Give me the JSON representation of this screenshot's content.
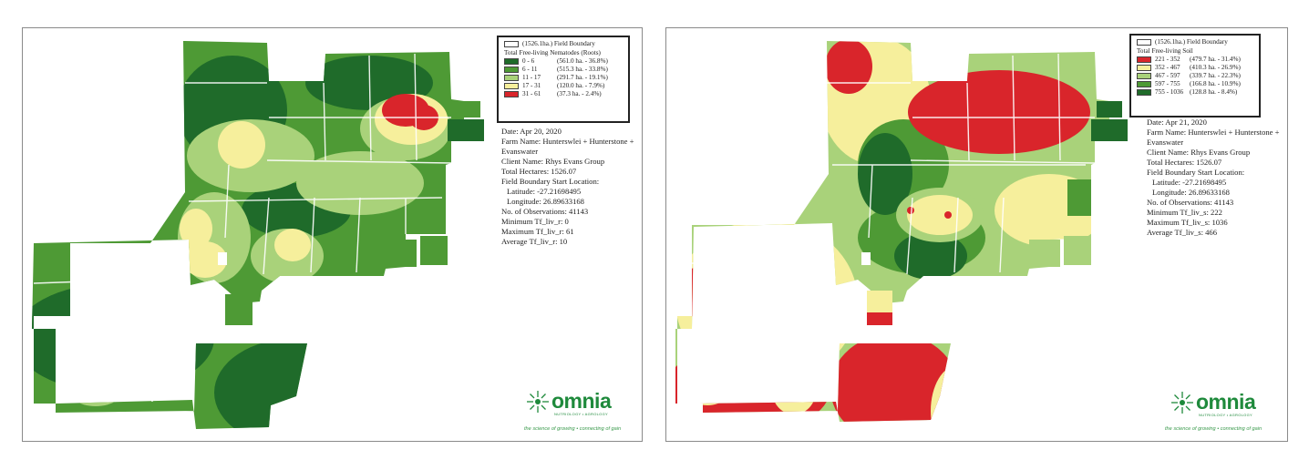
{
  "colors": {
    "class1": "#1f6b2a",
    "class2": "#4e9a35",
    "class3": "#a9d27a",
    "class4": "#f6ef9c",
    "class5": "#d9252b",
    "brand": "#1f8a3c"
  },
  "maps": [
    {
      "legend": {
        "boundary_label": "(1526.1ha.) Field Boundary",
        "title": "Total Free-living Nematodes (Roots)",
        "classes": [
          {
            "range": "0 - 6",
            "stat": "(561.0 ha. - 36.8%)",
            "class": "class1"
          },
          {
            "range": "6 - 11",
            "stat": "(515.3 ha. - 33.8%)",
            "class": "class2"
          },
          {
            "range": "11 - 17",
            "stat": "(291.7 ha. - 19.1%)",
            "class": "class3"
          },
          {
            "range": "17 - 31",
            "stat": "(120.0 ha. - 7.9%)",
            "class": "class4"
          },
          {
            "range": "31 - 61",
            "stat": "(37.3 ha. - 2.4%)",
            "class": "class5"
          }
        ]
      },
      "info": {
        "date": "Date: Apr 20, 2020",
        "farm": "Farm Name: Hunterswlei + Hunterstone + Evanswater",
        "client": "Client Name: Rhys Evans Group",
        "hectares": "Total Hectares: 1526.07",
        "start_label": "Field Boundary Start Location:",
        "latitude": "Latitude: -27.21698495",
        "longitude": "Longitude: 26.89633168",
        "observations": "No. of Observations: 41143",
        "minimum": "Minimum Tf_liv_r: 0",
        "maximum": "Maximum Tf_liv_r: 61",
        "average": "Average Tf_liv_r: 10"
      }
    },
    {
      "legend": {
        "boundary_label": "(1526.1ha.) Field Boundary",
        "title": "Total Free-living Soil",
        "classes": [
          {
            "range": "221 - 352",
            "stat": "(479.7 ha. - 31.4%)",
            "class": "class5"
          },
          {
            "range": "352 - 467",
            "stat": "(410.3 ha. - 26.9%)",
            "class": "class4"
          },
          {
            "range": "467 - 597",
            "stat": "(339.7 ha. - 22.3%)",
            "class": "class3"
          },
          {
            "range": "597 - 755",
            "stat": "(166.8 ha. - 10.9%)",
            "class": "class2"
          },
          {
            "range": "755 - 1036",
            "stat": "(128.8 ha. - 8.4%)",
            "class": "class1"
          }
        ]
      },
      "info": {
        "date": "Date: Apr 21, 2020",
        "farm": "Farm Name: Hunterswlei + Hunterstone + Evanswater",
        "client": "Client Name: Rhys Evans Group",
        "hectares": "Total Hectares: 1526.07",
        "start_label": "Field Boundary Start Location:",
        "latitude": "Latitude: -27.21698495",
        "longitude": "Longitude: 26.89633168",
        "observations": "No. of Observations: 41143",
        "minimum": "Minimum Tf_liv_s: 222",
        "maximum": "Maximum Tf_liv_s: 1036",
        "average": "Average Tf_liv_s: 466"
      }
    }
  ],
  "brand": {
    "name": "omnia",
    "subtitle": "NUTRIOLOGY • AGROLOGY",
    "tagline": "the science of growing • connecting of gain"
  }
}
